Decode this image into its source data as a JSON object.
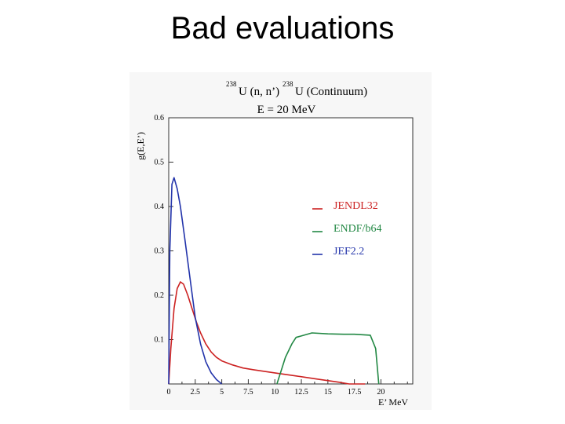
{
  "slide": {
    "title": "Bad evaluations"
  },
  "chart_data": {
    "type": "line",
    "title_reaction_prefix_a": "238",
    "title_reaction_text_a": "U (n, n’)",
    "title_reaction_prefix_b": "238",
    "title_reaction_text_b": "U (Continuum)",
    "subtitle": "E = 20 MeV",
    "xlabel": "E’ MeV",
    "ylabel": "g(E,E’)",
    "xlim": [
      0,
      23
    ],
    "ylim": [
      0,
      0.6
    ],
    "x_ticks": [
      "0",
      "2.5",
      "5",
      "7.5",
      "10",
      "12.5",
      "15",
      "17.5",
      "20"
    ],
    "x_tick_values": [
      0,
      2.5,
      5,
      7.5,
      10,
      12.5,
      15,
      17.5,
      20
    ],
    "y_ticks": [
      "0.1",
      "0.2",
      "0.3",
      "0.4",
      "0.5",
      "0.6"
    ],
    "y_tick_values": [
      0.1,
      0.2,
      0.3,
      0.4,
      0.5,
      0.6
    ],
    "legend_position": "center-right",
    "series": [
      {
        "name": "JENDL32",
        "color": "#cc2222",
        "x": [
          0,
          0.2,
          0.5,
          0.8,
          1.1,
          1.4,
          1.8,
          2.2,
          2.6,
          3.0,
          3.5,
          4.0,
          4.5,
          5.0,
          6.0,
          7.0,
          8.0,
          10.0,
          12.0,
          14.0,
          16.0,
          17.0,
          18.5
        ],
        "y": [
          0.0,
          0.08,
          0.17,
          0.215,
          0.23,
          0.225,
          0.2,
          0.17,
          0.14,
          0.115,
          0.09,
          0.072,
          0.06,
          0.052,
          0.043,
          0.036,
          0.032,
          0.025,
          0.018,
          0.011,
          0.004,
          0.0,
          0.0
        ]
      },
      {
        "name": "ENDF/b64",
        "color": "#228844",
        "x": [
          10.2,
          10.6,
          11.0,
          11.6,
          12.0,
          13.5,
          15.0,
          16.5,
          17.5,
          19.0,
          19.5,
          19.8
        ],
        "y": [
          0.0,
          0.03,
          0.06,
          0.09,
          0.105,
          0.115,
          0.113,
          0.112,
          0.112,
          0.11,
          0.08,
          0.0
        ]
      },
      {
        "name": "JEF2.2",
        "color": "#2233aa",
        "x": [
          0,
          0.1,
          0.3,
          0.5,
          0.8,
          1.1,
          1.5,
          2.0,
          2.5,
          3.0,
          3.5,
          4.0,
          4.5,
          5.0
        ],
        "y": [
          0.0,
          0.3,
          0.45,
          0.465,
          0.44,
          0.4,
          0.33,
          0.24,
          0.15,
          0.09,
          0.05,
          0.025,
          0.01,
          0.0
        ]
      }
    ]
  }
}
